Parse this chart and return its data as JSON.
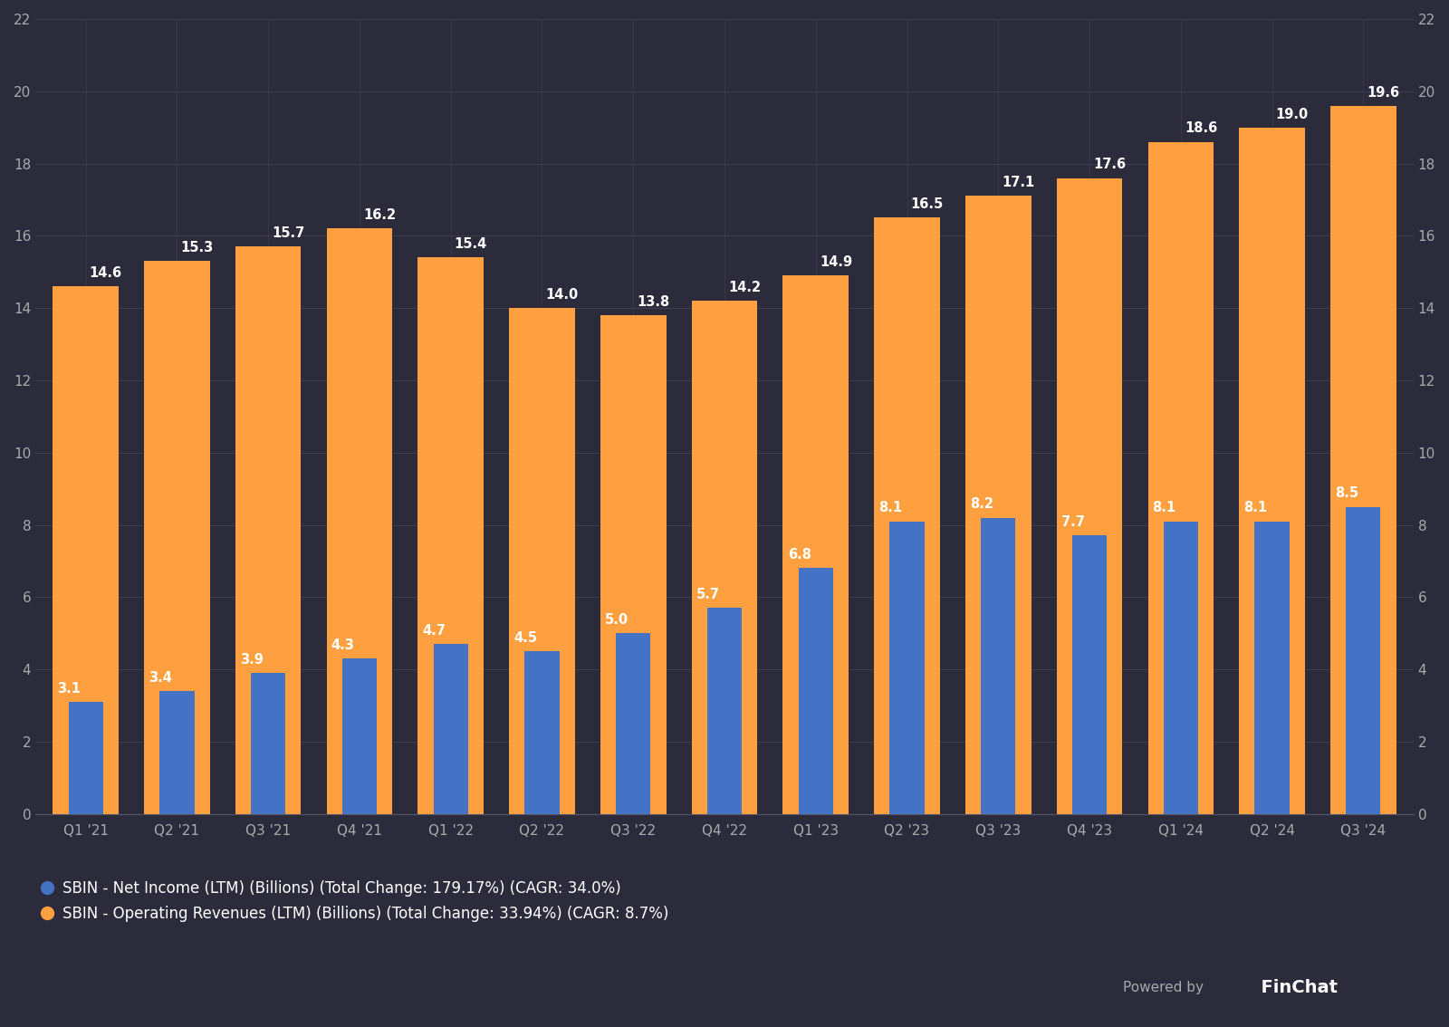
{
  "categories": [
    "Q1 '21",
    "Q2 '21",
    "Q3 '21",
    "Q4 '21",
    "Q1 '22",
    "Q2 '22",
    "Q3 '22",
    "Q4 '22",
    "Q1 '23",
    "Q2 '23",
    "Q3 '23",
    "Q4 '23",
    "Q1 '24",
    "Q2 '24",
    "Q3 '24"
  ],
  "net_income": [
    3.1,
    3.4,
    3.9,
    4.3,
    4.7,
    4.5,
    5.0,
    5.7,
    6.8,
    8.1,
    8.2,
    7.7,
    8.1,
    8.1,
    8.5
  ],
  "op_revenue": [
    14.6,
    15.3,
    15.7,
    16.2,
    15.4,
    14.0,
    13.8,
    14.2,
    14.9,
    16.5,
    17.1,
    17.6,
    18.6,
    19.0,
    19.6
  ],
  "net_income_color": "#4472C4",
  "op_revenue_color": "#FFA040",
  "background_color": "#2B2B3B",
  "plot_bg_color": "#2B2B3B",
  "grid_color": "#3D3D52",
  "text_color": "#FFFFFF",
  "tick_color": "#AAAAAA",
  "axis_color": "#555566",
  "ylim": [
    0,
    22
  ],
  "yticks": [
    0,
    2,
    4,
    6,
    8,
    10,
    12,
    14,
    16,
    18,
    20,
    22
  ],
  "legend_net_income": "SBIN - Net Income (LTM) (Billions) (Total Change: 179.17%) (CAGR: 34.0%)",
  "legend_op_revenue": "SBIN - Operating Revenues (LTM) (Billions) (Total Change: 33.94%) (CAGR: 8.7%)",
  "orange_bar_width": 0.72,
  "blue_bar_width": 0.38,
  "tick_fontsize": 11,
  "legend_fontsize": 12,
  "value_fontsize": 10.5,
  "powered_by_text": "Powered by",
  "finchat_text": "  FinChat"
}
